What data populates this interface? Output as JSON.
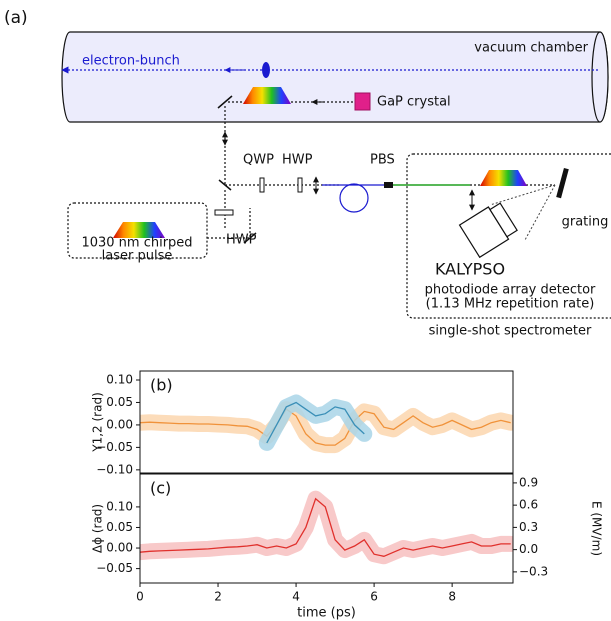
{
  "diagram": {
    "panel": "(a)",
    "chamber": "vacuum chamber",
    "bunch": "electron-bunch",
    "crystal": "GaP crystal",
    "qwp": "QWP",
    "hwp_top": "HWP",
    "pbs": "PBS",
    "hwp_bottom": "HWP",
    "laser": [
      "1030 nm chirped",
      "laser pulse"
    ],
    "grating": "grating",
    "kalypso": "KALYPSO",
    "detector": [
      "photodiode array detector",
      "(1.13 MHz repetition rate)"
    ],
    "spectrometer": "single-shot spectrometer"
  },
  "chart_data": [
    {
      "type": "line",
      "label": "(b)",
      "ylabel": "Y1,2 (rad)",
      "x": [
        0,
        0.25,
        0.5,
        0.75,
        1,
        1.25,
        1.5,
        1.75,
        2,
        2.25,
        2.5,
        2.75,
        3,
        3.25,
        3.5,
        3.75,
        4,
        4.25,
        4.5,
        4.75,
        5,
        5.25,
        5.5,
        5.75,
        6,
        6.25,
        6.5,
        6.75,
        7,
        7.25,
        7.5,
        7.75,
        8,
        8.25,
        8.5,
        8.75,
        9,
        9.25,
        9.5
      ],
      "xlim": [
        0,
        9.56
      ],
      "ylim": [
        -0.107,
        0.12
      ],
      "yticks": [
        {
          "value": -0.1,
          "label": "−0.10"
        },
        {
          "value": -0.05,
          "label": "−0.05"
        },
        {
          "value": 0,
          "label": "0.00"
        },
        {
          "value": 0.05,
          "label": "0.05"
        },
        {
          "value": 0.1,
          "label": "0.10"
        }
      ],
      "series": [
        {
          "color": "#f0923a",
          "band_color": "#fbd6ae",
          "values": [
            0.005,
            0.006,
            0.005,
            0.004,
            0.003,
            0.003,
            0.002,
            0.002,
            0.001,
            0,
            -0.002,
            -0.003,
            -0.01,
            -0.025,
            0.0,
            0.035,
            0.02,
            -0.02,
            -0.04,
            -0.045,
            -0.045,
            -0.03,
            0.01,
            0.03,
            0.025,
            -0.005,
            -0.01,
            0.005,
            0.02,
            0.005,
            -0.005,
            0.0,
            0.01,
            0.0,
            -0.01,
            -0.005,
            0.005,
            0.01,
            0.005
          ]
        },
        {
          "color": "#3a8fb7",
          "band_color": "#a9d5e8",
          "values": [
            null,
            null,
            null,
            null,
            null,
            null,
            null,
            null,
            null,
            null,
            null,
            null,
            null,
            -0.04,
            0.0,
            0.04,
            0.05,
            0.035,
            0.02,
            0.025,
            0.04,
            0.035,
            0.0,
            -0.02,
            null,
            null,
            null,
            null,
            null,
            null,
            null,
            null,
            null,
            null,
            null,
            null,
            null,
            null,
            null
          ]
        }
      ]
    },
    {
      "type": "line",
      "label": "(c)",
      "ylabel": "Δϕ (rad)",
      "y2label": "E (MV/m)",
      "xlabel": "time (ps)",
      "x": [
        0,
        0.25,
        0.5,
        0.75,
        1,
        1.25,
        1.5,
        1.75,
        2,
        2.25,
        2.5,
        2.75,
        3,
        3.25,
        3.5,
        3.75,
        4,
        4.25,
        4.5,
        4.75,
        5,
        5.25,
        5.5,
        5.75,
        6,
        6.25,
        6.5,
        6.75,
        7,
        7.25,
        7.5,
        7.75,
        8,
        8.25,
        8.5,
        8.75,
        9,
        9.25,
        9.5
      ],
      "xlim": [
        0,
        9.56
      ],
      "xticks": [
        0,
        2,
        4,
        6,
        8
      ],
      "ylim": [
        -0.085,
        0.18
      ],
      "yticks": [
        {
          "value": -0.05,
          "label": "−0.05"
        },
        {
          "value": 0,
          "label": "0.00"
        },
        {
          "value": 0.05,
          "label": "0.05"
        },
        {
          "value": 0.1,
          "label": "0.10"
        }
      ],
      "y2lim": [
        -0.45,
        1.02
      ],
      "y2ticks": [
        {
          "value": -0.3,
          "label": "−0.3"
        },
        {
          "value": 0,
          "label": "0.0"
        },
        {
          "value": 0.3,
          "label": "0.3"
        },
        {
          "value": 0.6,
          "label": "0.6"
        },
        {
          "value": 0.9,
          "label": "0.9"
        }
      ],
      "series": [
        {
          "color": "#e0302c",
          "band_color": "#f7c0c0",
          "values": [
            -0.01,
            -0.008,
            -0.007,
            -0.006,
            -0.005,
            -0.004,
            -0.003,
            -0.002,
            0.0,
            0.002,
            0.003,
            0.005,
            0.008,
            0.0,
            0.005,
            0.0,
            0.01,
            0.05,
            0.12,
            0.1,
            0.02,
            -0.005,
            0.005,
            0.02,
            -0.015,
            -0.02,
            -0.01,
            0,
            -0.005,
            0,
            0.005,
            0,
            0.005,
            0.01,
            0.015,
            0.005,
            0.005,
            0.01,
            0.01
          ]
        }
      ]
    }
  ]
}
